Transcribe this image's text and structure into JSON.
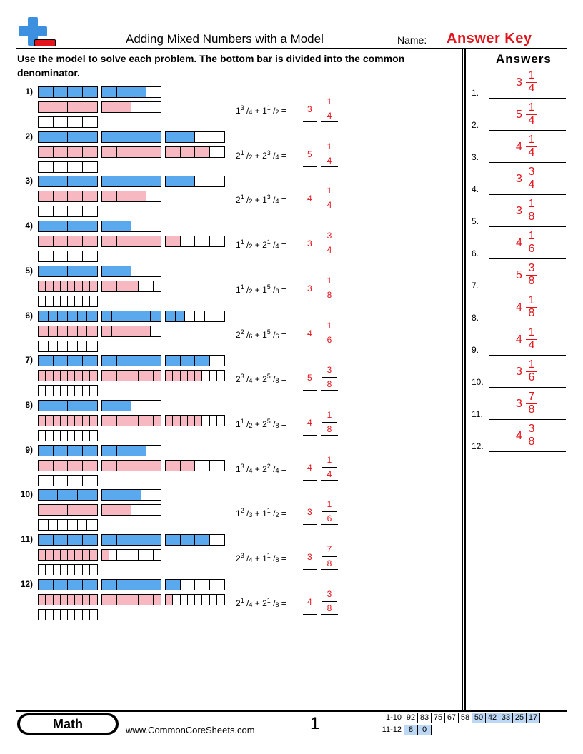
{
  "header": {
    "title": "Adding Mixed Numbers with a Model",
    "name_label": "Name:",
    "answer_key": "Answer Key"
  },
  "instructions": "Use the model to solve each problem. The bottom bar is divided into the common denominator.",
  "colors": {
    "blue": "#5aa8ee",
    "pink": "#f8b8c2",
    "red": "#e3141c"
  },
  "problems": [
    {
      "num": "1)",
      "a_whole": "1",
      "a_num": "3",
      "a_den": "4",
      "b_whole": "1",
      "b_num": "1",
      "b_den": "2",
      "ans_whole": "3",
      "ans_num": "1",
      "ans_den": "4",
      "bar1_den": 4,
      "bar1": [
        4,
        3
      ],
      "bar2_den": 2,
      "bar2": [
        2,
        1
      ],
      "common_den": 4
    },
    {
      "num": "2)",
      "a_whole": "2",
      "a_num": "1",
      "a_den": "2",
      "b_whole": "2",
      "b_num": "3",
      "b_den": "4",
      "ans_whole": "5",
      "ans_num": "1",
      "ans_den": "4",
      "bar1_den": 2,
      "bar1": [
        2,
        2,
        1
      ],
      "bar2_den": 4,
      "bar2": [
        4,
        4,
        3
      ],
      "common_den": 4
    },
    {
      "num": "3)",
      "a_whole": "2",
      "a_num": "1",
      "a_den": "2",
      "b_whole": "1",
      "b_num": "3",
      "b_den": "4",
      "ans_whole": "4",
      "ans_num": "1",
      "ans_den": "4",
      "bar1_den": 2,
      "bar1": [
        2,
        2,
        1
      ],
      "bar2_den": 4,
      "bar2": [
        4,
        3
      ],
      "common_den": 4
    },
    {
      "num": "4)",
      "a_whole": "1",
      "a_num": "1",
      "a_den": "2",
      "b_whole": "2",
      "b_num": "1",
      "b_den": "4",
      "ans_whole": "3",
      "ans_num": "3",
      "ans_den": "4",
      "bar1_den": 2,
      "bar1": [
        2,
        1
      ],
      "bar2_den": 4,
      "bar2": [
        4,
        4,
        1
      ],
      "common_den": 4
    },
    {
      "num": "5)",
      "a_whole": "1",
      "a_num": "1",
      "a_den": "2",
      "b_whole": "1",
      "b_num": "5",
      "b_den": "8",
      "ans_whole": "3",
      "ans_num": "1",
      "ans_den": "8",
      "bar1_den": 2,
      "bar1": [
        2,
        1
      ],
      "bar2_den": 8,
      "bar2": [
        8,
        5
      ],
      "common_den": 8
    },
    {
      "num": "6)",
      "a_whole": "2",
      "a_num": "2",
      "a_den": "6",
      "b_whole": "1",
      "b_num": "5",
      "b_den": "6",
      "ans_whole": "4",
      "ans_num": "1",
      "ans_den": "6",
      "bar1_den": 6,
      "bar1": [
        6,
        6,
        2
      ],
      "bar2_den": 6,
      "bar2": [
        6,
        5
      ],
      "common_den": 6
    },
    {
      "num": "7)",
      "a_whole": "2",
      "a_num": "3",
      "a_den": "4",
      "b_whole": "2",
      "b_num": "5",
      "b_den": "8",
      "ans_whole": "5",
      "ans_num": "3",
      "ans_den": "8",
      "bar1_den": 4,
      "bar1": [
        4,
        4,
        3
      ],
      "bar2_den": 8,
      "bar2": [
        8,
        8,
        5
      ],
      "common_den": 8
    },
    {
      "num": "8)",
      "a_whole": "1",
      "a_num": "1",
      "a_den": "2",
      "b_whole": "2",
      "b_num": "5",
      "b_den": "8",
      "ans_whole": "4",
      "ans_num": "1",
      "ans_den": "8",
      "bar1_den": 2,
      "bar1": [
        2,
        1
      ],
      "bar2_den": 8,
      "bar2": [
        8,
        8,
        5
      ],
      "common_den": 8
    },
    {
      "num": "9)",
      "a_whole": "1",
      "a_num": "3",
      "a_den": "4",
      "b_whole": "2",
      "b_num": "2",
      "b_den": "4",
      "ans_whole": "4",
      "ans_num": "1",
      "ans_den": "4",
      "bar1_den": 4,
      "bar1": [
        4,
        3
      ],
      "bar2_den": 4,
      "bar2": [
        4,
        4,
        2
      ],
      "common_den": 4
    },
    {
      "num": "10)",
      "a_whole": "1",
      "a_num": "2",
      "a_den": "3",
      "b_whole": "1",
      "b_num": "1",
      "b_den": "2",
      "ans_whole": "3",
      "ans_num": "1",
      "ans_den": "6",
      "bar1_den": 3,
      "bar1": [
        3,
        2
      ],
      "bar2_den": 2,
      "bar2": [
        2,
        1
      ],
      "common_den": 6
    },
    {
      "num": "11)",
      "a_whole": "2",
      "a_num": "3",
      "a_den": "4",
      "b_whole": "1",
      "b_num": "1",
      "b_den": "8",
      "ans_whole": "3",
      "ans_num": "7",
      "ans_den": "8",
      "bar1_den": 4,
      "bar1": [
        4,
        4,
        3
      ],
      "bar2_den": 8,
      "bar2": [
        8,
        1
      ],
      "common_den": 8
    },
    {
      "num": "12)",
      "a_whole": "2",
      "a_num": "1",
      "a_den": "4",
      "b_whole": "2",
      "b_num": "1",
      "b_den": "8",
      "ans_whole": "4",
      "ans_num": "3",
      "ans_den": "8",
      "bar1_den": 4,
      "bar1": [
        4,
        4,
        1
      ],
      "bar2_den": 8,
      "bar2": [
        8,
        8,
        1
      ],
      "common_den": 8
    }
  ],
  "answers_panel": {
    "title": "Answers",
    "items": [
      {
        "num": "1.",
        "whole": "3",
        "num_f": "1",
        "den": "4"
      },
      {
        "num": "2.",
        "whole": "5",
        "num_f": "1",
        "den": "4"
      },
      {
        "num": "3.",
        "whole": "4",
        "num_f": "1",
        "den": "4"
      },
      {
        "num": "4.",
        "whole": "3",
        "num_f": "3",
        "den": "4"
      },
      {
        "num": "5.",
        "whole": "3",
        "num_f": "1",
        "den": "8"
      },
      {
        "num": "6.",
        "whole": "4",
        "num_f": "1",
        "den": "6"
      },
      {
        "num": "7.",
        "whole": "5",
        "num_f": "3",
        "den": "8"
      },
      {
        "num": "8.",
        "whole": "4",
        "num_f": "1",
        "den": "8"
      },
      {
        "num": "9.",
        "whole": "4",
        "num_f": "1",
        "den": "4"
      },
      {
        "num": "10.",
        "whole": "3",
        "num_f": "1",
        "den": "6"
      },
      {
        "num": "11.",
        "whole": "3",
        "num_f": "7",
        "den": "8"
      },
      {
        "num": "12.",
        "whole": "4",
        "num_f": "3",
        "den": "8"
      }
    ]
  },
  "footer": {
    "subject": "Math",
    "site": "www.CommonCoreSheets.com",
    "page": "1",
    "score_rows": [
      {
        "label": "1-10",
        "scores": [
          "92",
          "83",
          "75",
          "67",
          "58",
          "50",
          "42",
          "33",
          "25",
          "17"
        ]
      },
      {
        "label": "11-12",
        "scores": [
          "8",
          "0"
        ]
      }
    ]
  }
}
